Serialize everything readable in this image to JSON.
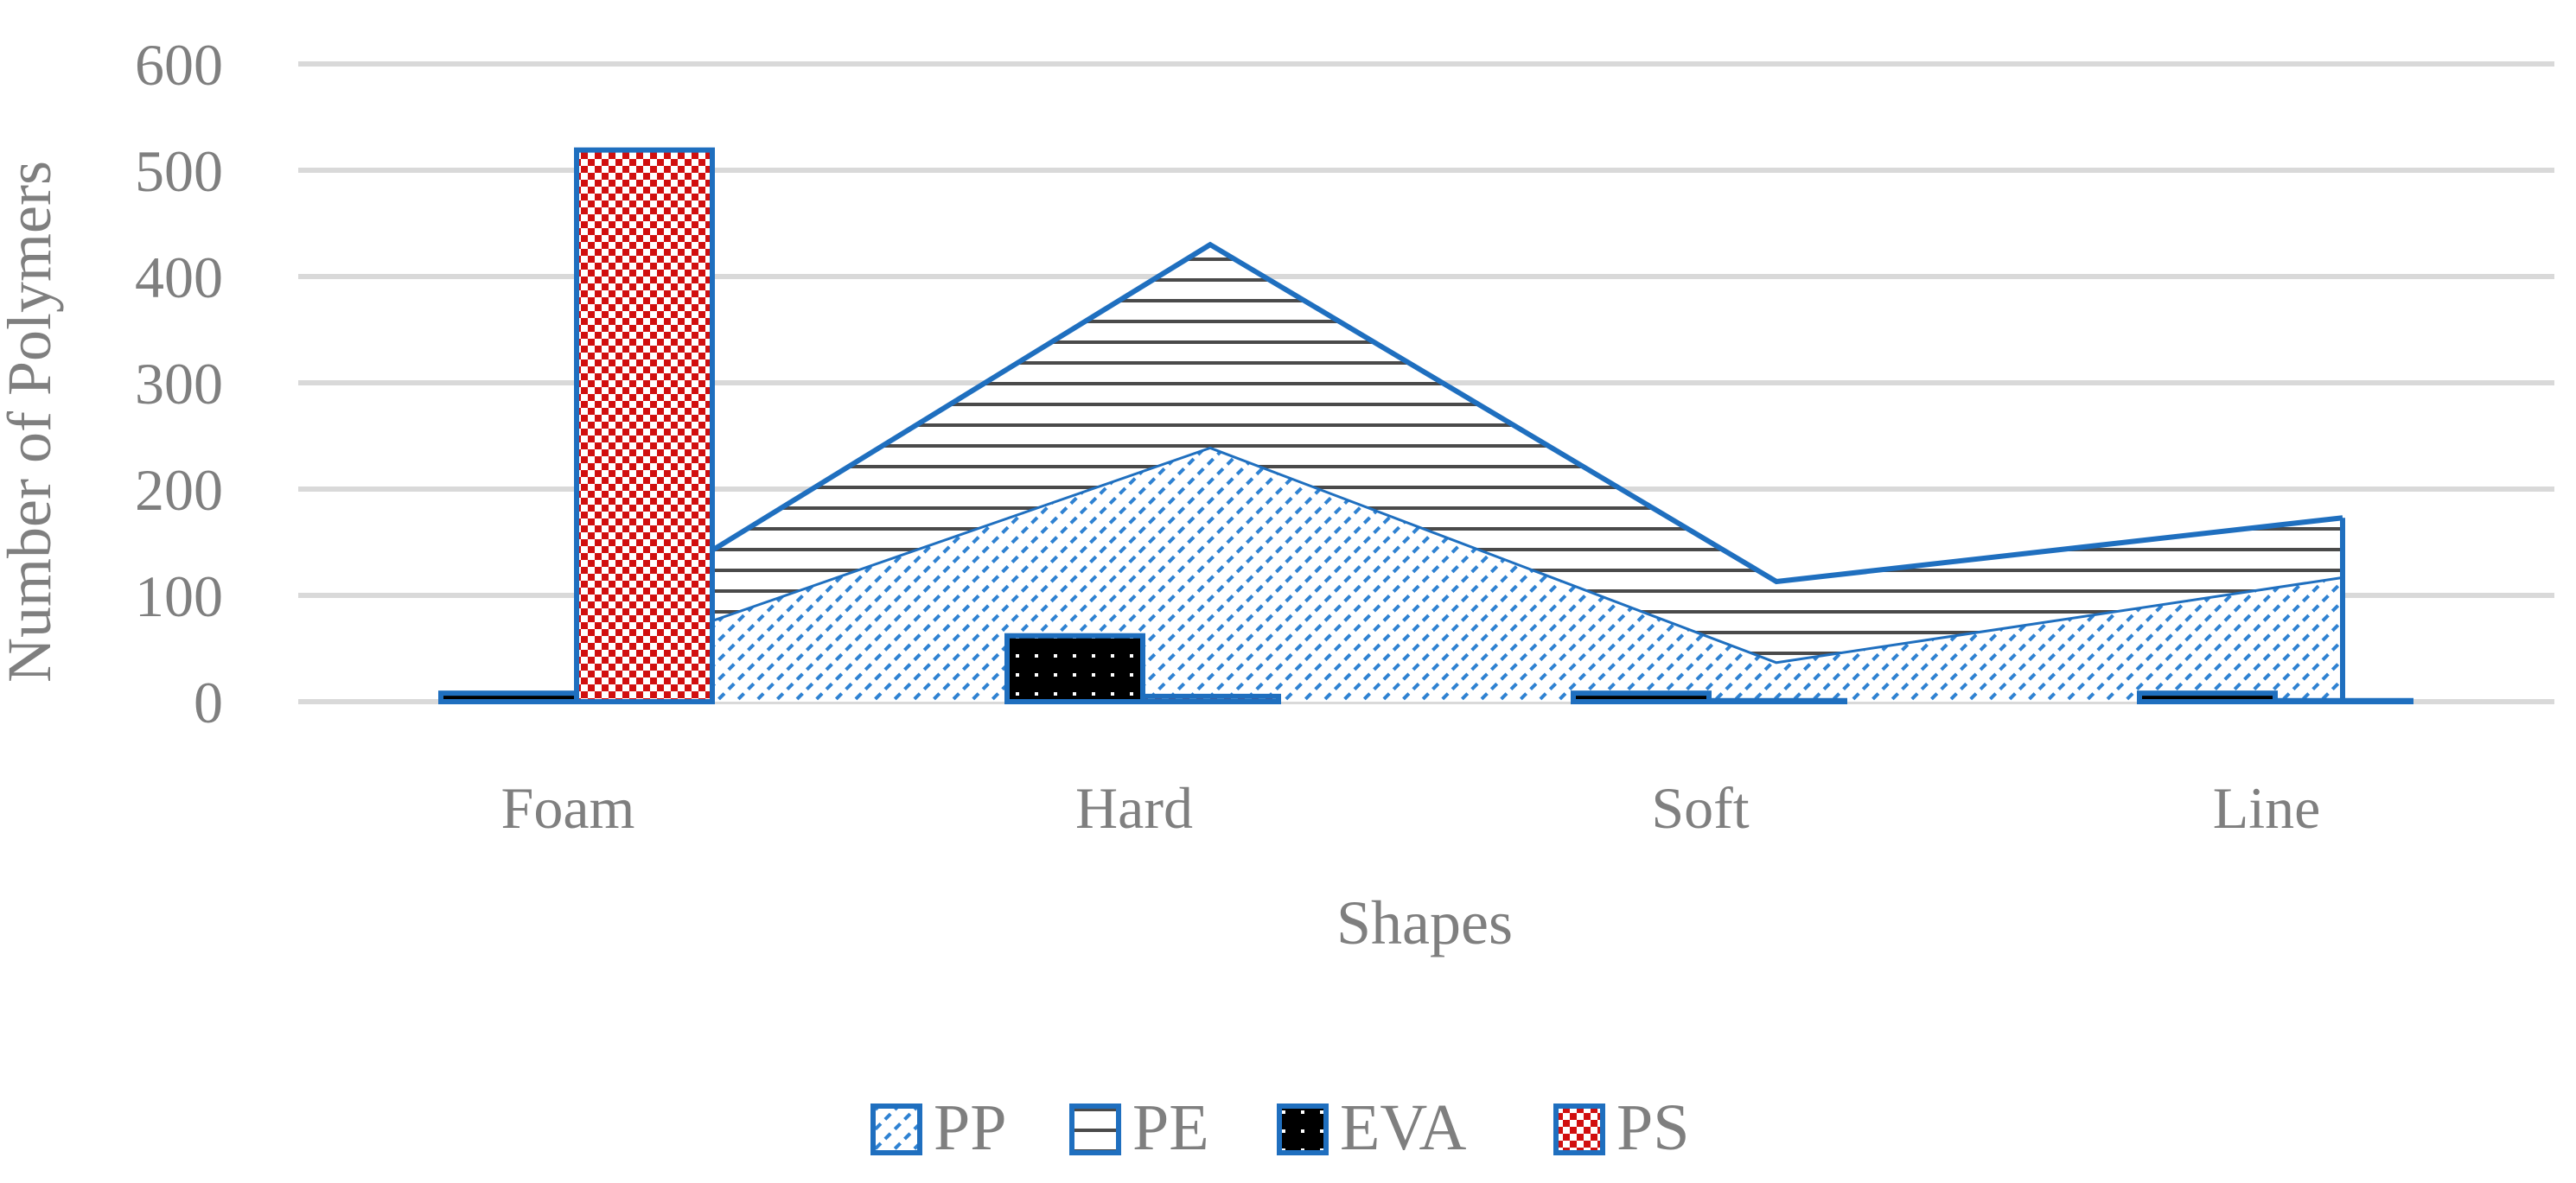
{
  "chart_data": {
    "type": "area",
    "categories": [
      "Foam",
      "Hard",
      "Soft",
      "Line"
    ],
    "series": [
      {
        "name": "PP",
        "render": "area",
        "values": [
          55,
          240,
          38,
          118
        ],
        "pattern": "diagonal-dashes"
      },
      {
        "name": "PE",
        "render": "area",
        "values": [
          48,
          190,
          75,
          55
        ],
        "pattern": "horizontal-lines"
      },
      {
        "name": "EVA",
        "render": "bar",
        "values": [
          8,
          62,
          8,
          8
        ],
        "pattern": "black-dots"
      },
      {
        "name": "PS",
        "render": "bar",
        "values": [
          519,
          5,
          1,
          1
        ],
        "pattern": "red-checker"
      }
    ],
    "stacked_areas": true,
    "xlabel": "Shapes",
    "ylabel": "Number of Polymers",
    "ylim": [
      0,
      600
    ],
    "yticks": [
      "0",
      "100",
      "200",
      "300",
      "400",
      "500",
      "600"
    ],
    "grid": true,
    "legend_position": "bottom-center",
    "colors": {
      "outline": "#1f6fbf",
      "grid": "#d9d9d9",
      "text": "#7f7f7f",
      "pp_pattern": "#2f82d2",
      "pe_pattern": "#4a4a4a",
      "eva_fill": "#000000",
      "ps_pattern": "#d10f0f"
    }
  }
}
